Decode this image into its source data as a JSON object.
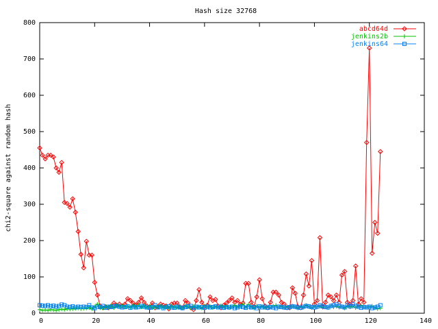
{
  "chart_data": {
    "type": "line",
    "title": "Hash size 32768",
    "ylabel": "chi2-square against random hash",
    "x": [
      0,
      1,
      2,
      3,
      4,
      5,
      6,
      7,
      8,
      9,
      10,
      11,
      12,
      13,
      14,
      15,
      16,
      17,
      18,
      19,
      20,
      21,
      22,
      23,
      24,
      25,
      26,
      27,
      28,
      29,
      30,
      31,
      32,
      33,
      34,
      35,
      36,
      37,
      38,
      39,
      40,
      41,
      42,
      43,
      44,
      45,
      46,
      47,
      48,
      49,
      50,
      51,
      52,
      53,
      54,
      55,
      56,
      57,
      58,
      59,
      60,
      61,
      62,
      63,
      64,
      65,
      66,
      67,
      68,
      69,
      70,
      71,
      72,
      73,
      74,
      75,
      76,
      77,
      78,
      79,
      80,
      81,
      82,
      83,
      84,
      85,
      86,
      87,
      88,
      89,
      90,
      91,
      92,
      93,
      94,
      95,
      96,
      97,
      98,
      99,
      100,
      101,
      102,
      103,
      104,
      105,
      106,
      107,
      108,
      109,
      110,
      111,
      112,
      113,
      114,
      115,
      116,
      117,
      118,
      119,
      120,
      121,
      122,
      123,
      124
    ],
    "series": [
      {
        "name": "abcd64d",
        "color": "#ff0000",
        "marker": "diamond",
        "values": [
          455,
          435,
          425,
          435,
          435,
          430,
          400,
          388,
          415,
          305,
          302,
          292,
          315,
          278,
          225,
          162,
          125,
          198,
          160,
          160,
          85,
          50,
          20,
          15,
          18,
          15,
          20,
          28,
          22,
          25,
          20,
          25,
          40,
          35,
          28,
          22,
          30,
          42,
          30,
          20,
          18,
          28,
          15,
          18,
          25,
          22,
          20,
          12,
          25,
          28,
          28,
          18,
          15,
          35,
          28,
          15,
          10,
          35,
          65,
          30,
          18,
          22,
          45,
          35,
          38,
          20,
          15,
          22,
          28,
          35,
          42,
          30,
          35,
          25,
          28,
          82,
          82,
          30,
          18,
          45,
          92,
          40,
          20,
          15,
          30,
          58,
          58,
          50,
          30,
          25,
          15,
          15,
          70,
          55,
          18,
          15,
          50,
          108,
          75,
          145,
          25,
          35,
          208,
          18,
          30,
          50,
          45,
          35,
          50,
          30,
          105,
          115,
          30,
          25,
          35,
          130,
          25,
          40,
          30,
          470,
          730,
          165,
          250,
          220,
          445
        ]
      },
      {
        "name": "jenkins2b",
        "color": "#00c000",
        "marker": "plus",
        "values": [
          10,
          8,
          9,
          8,
          10,
          9,
          8,
          10,
          11,
          10,
          12,
          11,
          12,
          13,
          14,
          12,
          13,
          14,
          15,
          12,
          18,
          25,
          15,
          14,
          18,
          16,
          20,
          15,
          22,
          18,
          20,
          17,
          19,
          16,
          21,
          18,
          22,
          17,
          20,
          16,
          19,
          15,
          18,
          17,
          20,
          16,
          18,
          15,
          19,
          17,
          16,
          18,
          14,
          20,
          17,
          15,
          19,
          16,
          18,
          14,
          20,
          17,
          19,
          15,
          18,
          16,
          21,
          17,
          19,
          15,
          18,
          22,
          17,
          20,
          25,
          16,
          24,
          18,
          14,
          20,
          17,
          19,
          15,
          18,
          16,
          20,
          22,
          17,
          19,
          15,
          18,
          16,
          20,
          17,
          14,
          19,
          16,
          22,
          18,
          15,
          20,
          17,
          19,
          16,
          18,
          15,
          21,
          17,
          19,
          16,
          18,
          14,
          20,
          17,
          19,
          15,
          18,
          22,
          17,
          16,
          18,
          20,
          15,
          12,
          14
        ]
      },
      {
        "name": "jenkins64",
        "color": "#0080ff",
        "marker": "square",
        "values": [
          22,
          21,
          20,
          22,
          19,
          21,
          18,
          20,
          24,
          22,
          18,
          17,
          19,
          16,
          18,
          17,
          18,
          17,
          22,
          16,
          14,
          18,
          17,
          20,
          15,
          18,
          17,
          19,
          20,
          18,
          16,
          17,
          19,
          15,
          18,
          16,
          17,
          20,
          18,
          16,
          15,
          17,
          22,
          16,
          18,
          14,
          17,
          19,
          16,
          15,
          18,
          16,
          14,
          17,
          19,
          20,
          15,
          18,
          16,
          17,
          15,
          18,
          16,
          17,
          19,
          16,
          18,
          15,
          17,
          16,
          18,
          14,
          16,
          19,
          17,
          15,
          18,
          16,
          17,
          14,
          19,
          16,
          18,
          15,
          17,
          16,
          14,
          18,
          17,
          16,
          15,
          17,
          19,
          18,
          16,
          15,
          18,
          20,
          19,
          17,
          16,
          18,
          22,
          19,
          17,
          16,
          20,
          22,
          25,
          20,
          18,
          16,
          22,
          19,
          25,
          20,
          18,
          15,
          17,
          16,
          18,
          14,
          16,
          18,
          22
        ]
      }
    ],
    "xlim": [
      0,
      140
    ],
    "xticks": [
      0,
      20,
      40,
      60,
      80,
      100,
      120,
      140
    ],
    "ylim": [
      0,
      800
    ],
    "yticks": [
      0,
      100,
      200,
      300,
      400,
      500,
      600,
      700,
      800
    ],
    "legend": "upper right"
  }
}
